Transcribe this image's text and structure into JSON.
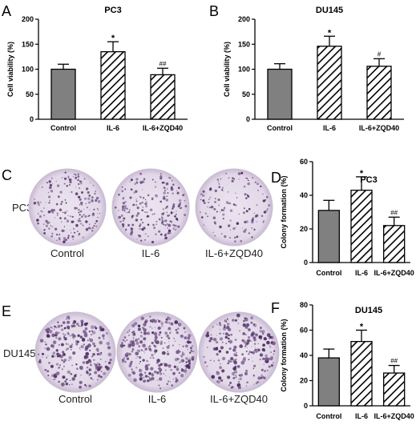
{
  "panels": {
    "A": "A",
    "B": "B",
    "C": "C",
    "D": "D",
    "E": "E",
    "F": "F"
  },
  "colony_images": [
    {
      "panel": "C",
      "row_label": "PC3",
      "dishes": [
        {
          "label": "Control",
          "density": 0.6
        },
        {
          "label": "IL-6",
          "density": 0.7
        },
        {
          "label": "IL-6+ZQD40",
          "density": 0.35
        }
      ]
    },
    {
      "panel": "E",
      "row_label": "DU145",
      "dishes": [
        {
          "label": "Control",
          "density": 0.85
        },
        {
          "label": "IL-6",
          "density": 0.95
        },
        {
          "label": "IL-6+ZQD40",
          "density": 0.75
        }
      ]
    }
  ],
  "chart_data": [
    {
      "panel": "A",
      "type": "bar",
      "title": "PC3",
      "ylabel": "Cell viability (%)",
      "xlabel": "",
      "categories": [
        "Control",
        "IL-6",
        "IL-6+ZQD40"
      ],
      "values": [
        100,
        135,
        89
      ],
      "errors": [
        10,
        20,
        13
      ],
      "significance": [
        "",
        "*",
        "##"
      ],
      "patterns": [
        "solid",
        "hatch",
        "hatch"
      ],
      "ylim": [
        0,
        200
      ],
      "yticks": [
        0,
        50,
        100,
        150,
        200
      ],
      "colors": {
        "solid": "#808080",
        "hatch": "#000000"
      }
    },
    {
      "panel": "B",
      "type": "bar",
      "title": "DU145",
      "ylabel": "Cell viability (%)",
      "xlabel": "",
      "categories": [
        "Control",
        "IL-6",
        "IL-6+ZQD40"
      ],
      "values": [
        100,
        146,
        106
      ],
      "errors": [
        11,
        20,
        15
      ],
      "significance": [
        "",
        "*",
        "#"
      ],
      "patterns": [
        "solid",
        "hatch",
        "hatch"
      ],
      "ylim": [
        0,
        200
      ],
      "yticks": [
        0,
        50,
        100,
        150,
        200
      ],
      "colors": {
        "solid": "#808080",
        "hatch": "#000000"
      }
    },
    {
      "panel": "D",
      "type": "bar",
      "title": "PC3",
      "ylabel": "Colony formation (%)",
      "xlabel": "",
      "categories": [
        "Control",
        "IL-6",
        "IL-6+ZQD40"
      ],
      "values": [
        31,
        43,
        22
      ],
      "errors": [
        6,
        8,
        5
      ],
      "significance": [
        "",
        "*",
        "##"
      ],
      "patterns": [
        "solid",
        "hatch",
        "hatch"
      ],
      "ylim": [
        0,
        60
      ],
      "yticks": [
        0,
        20,
        40,
        60
      ],
      "colors": {
        "solid": "#808080",
        "hatch": "#000000"
      }
    },
    {
      "panel": "F",
      "type": "bar",
      "title": "DU145",
      "ylabel": "Colony formation (%)",
      "xlabel": "",
      "categories": [
        "Control",
        "IL-6",
        "IL-6+ZQD40"
      ],
      "values": [
        38,
        51,
        26
      ],
      "errors": [
        7,
        9,
        6
      ],
      "significance": [
        "",
        "*",
        "##"
      ],
      "patterns": [
        "solid",
        "hatch",
        "hatch"
      ],
      "ylim": [
        0,
        80
      ],
      "yticks": [
        0,
        20,
        40,
        60,
        80
      ],
      "colors": {
        "solid": "#808080",
        "hatch": "#000000"
      }
    }
  ]
}
